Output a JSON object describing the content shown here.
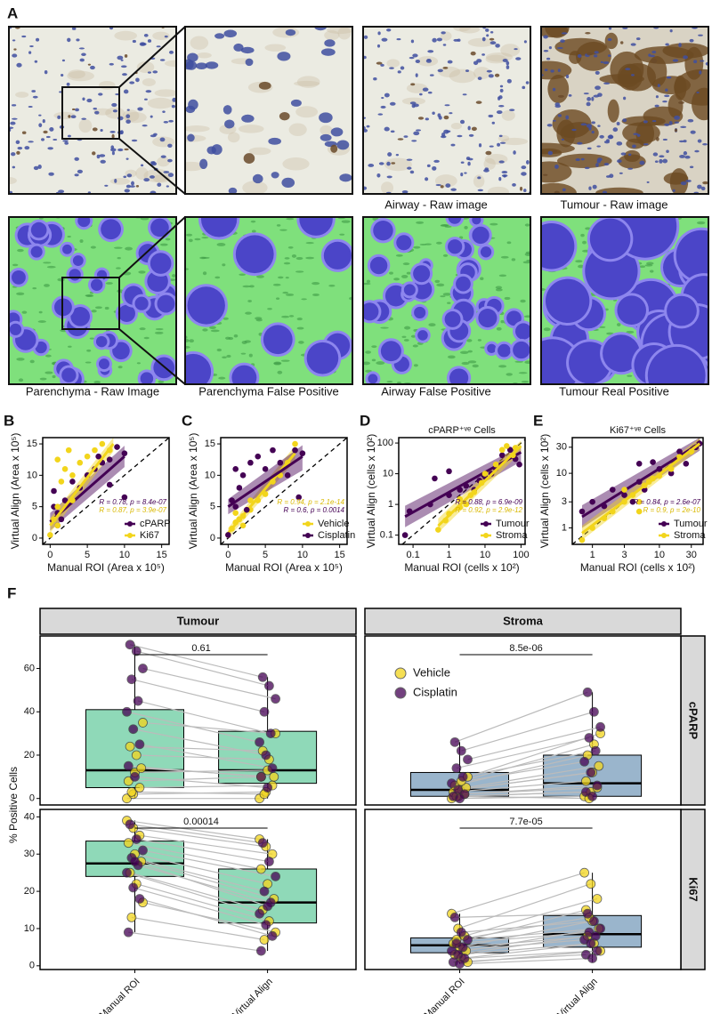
{
  "figure": {
    "panel_label": "A",
    "captions": [
      "Airway - Raw image",
      "Tumour - Raw image",
      "Parenchyma - Raw Image",
      "Parenchyma False Positive",
      "Airway False Positive",
      "Tumour Real Positive"
    ]
  },
  "chart_data": [
    {
      "type": "scatter",
      "panel_label": "B",
      "xlabel": "Manual ROI (Area x 10⁵)",
      "ylabel": "Virtual Align (Area x 10⁵)",
      "log": false,
      "identity_line": true,
      "legend": "bottom right",
      "xlim": [
        -1,
        16
      ],
      "ylim": [
        -1,
        16
      ],
      "xticks": [
        0,
        5,
        10,
        15
      ],
      "yticks": [
        0,
        5,
        10,
        15
      ],
      "series": [
        {
          "name": "cPARP",
          "color": "#440154",
          "x": [
            0.5,
            0.5,
            1,
            1.5,
            2,
            3,
            4,
            5,
            6,
            7,
            8,
            9,
            10,
            8,
            10,
            6.5,
            1
          ],
          "y": [
            7.5,
            5,
            2,
            3,
            6,
            9,
            8,
            10,
            11,
            12,
            12.5,
            14.5,
            13.5,
            8.5,
            6.5,
            13,
            4
          ],
          "fit_x": [
            0,
            10
          ],
          "fit_y": [
            2.6,
            13
          ],
          "band_low": [
            1.2,
            11.3
          ],
          "band_high": [
            4,
            14.7
          ],
          "stat_label": "R = 0.78, p = 8.4e-07"
        },
        {
          "name": "Ki67",
          "color": "#f2d51c",
          "x": [
            0,
            0.5,
            1,
            1.5,
            2,
            2.5,
            3,
            4,
            5,
            6,
            7,
            8,
            3,
            1,
            1
          ],
          "y": [
            0.5,
            3,
            5,
            9,
            11,
            14,
            10,
            12,
            13,
            14,
            15,
            14,
            6,
            2,
            12.5
          ],
          "fit_x": [
            0,
            8.5
          ],
          "fit_y": [
            2,
            15
          ],
          "band_low": [
            0.8,
            13.8
          ],
          "band_high": [
            3.2,
            16
          ],
          "stat_label": "R = 0.87, p = 3.9e-07"
        }
      ]
    },
    {
      "type": "scatter",
      "panel_label": "C",
      "xlabel": "Manual ROI (Area x 10⁵)",
      "ylabel": "Virtual Align (Area x 10⁵)",
      "log": false,
      "identity_line": true,
      "legend": "bottom right",
      "xlim": [
        -1,
        16
      ],
      "ylim": [
        -1,
        16
      ],
      "xticks": [
        0,
        5,
        10,
        15
      ],
      "yticks": [
        0,
        5,
        10,
        15
      ],
      "series": [
        {
          "name": "Vehicle",
          "color": "#f2d51c",
          "x": [
            0,
            0.5,
            1,
            1.5,
            2,
            3,
            4,
            5,
            6,
            7,
            8,
            9,
            2,
            3,
            1
          ],
          "y": [
            0.5,
            1.5,
            2.5,
            3,
            3.5,
            4.5,
            6,
            7,
            9,
            10,
            12,
            15,
            2,
            6,
            4
          ],
          "fit_x": [
            0,
            9
          ],
          "fit_y": [
            0.8,
            13.5
          ],
          "band_low": [
            0,
            12.3
          ],
          "band_high": [
            1.6,
            14.7
          ],
          "stat_label": "R = 0.94, p = 2.1e-14"
        },
        {
          "name": "Cisplatin",
          "color": "#440154",
          "x": [
            0,
            0.5,
            1,
            1.5,
            2,
            3,
            4,
            5,
            6,
            7,
            8,
            9,
            10,
            1,
            9.5,
            2.5
          ],
          "y": [
            0.5,
            6,
            5,
            8,
            10,
            12,
            13,
            11,
            14,
            12,
            10,
            14,
            13.5,
            11,
            6.5,
            4.5
          ],
          "fit_x": [
            0,
            10
          ],
          "fit_y": [
            5,
            13
          ],
          "band_low": [
            3.8,
            10.8
          ],
          "band_high": [
            6.2,
            14.8
          ],
          "stat_label": "R = 0.6, p = 0.0014"
        }
      ]
    },
    {
      "type": "scatter",
      "panel_label": "D",
      "title": "cPARP⁺ᵛᵉ Cells",
      "xlabel": "Manual ROI (cells x 10²)",
      "ylabel": "Virtual Align (cells x 10²)",
      "log": true,
      "identity_line": true,
      "legend": "bottom right",
      "xlim": [
        0.04,
        130
      ],
      "ylim": [
        0.05,
        150
      ],
      "xticks": [
        0.1,
        1,
        10,
        100
      ],
      "yticks": [
        0.1,
        1,
        10,
        100
      ],
      "series": [
        {
          "name": "Tumour",
          "color": "#440154",
          "x": [
            0.06,
            0.08,
            0.3,
            0.4,
            1,
            2,
            3,
            5,
            7,
            10,
            15,
            20,
            30,
            50,
            70,
            90,
            1
          ],
          "y": [
            0.1,
            0.6,
            1,
            7,
            2,
            3,
            4,
            3,
            6,
            8,
            10,
            15,
            40,
            60,
            30,
            20,
            12
          ],
          "fit_x": [
            0.06,
            100
          ],
          "fit_y": [
            0.4,
            50
          ],
          "band_low": [
            0.18,
            25
          ],
          "band_high": [
            0.9,
            80
          ],
          "stat_label": "R = 0.88, p = 6.9e-09"
        },
        {
          "name": "Stroma",
          "color": "#f2d51c",
          "x": [
            0.5,
            0.8,
            1,
            2,
            3,
            4,
            5,
            8,
            10,
            20,
            30,
            40,
            60,
            70,
            2
          ],
          "y": [
            0.15,
            0.3,
            0.5,
            0.8,
            1,
            2,
            2.5,
            5,
            10,
            20,
            60,
            80,
            40,
            70,
            1.5
          ],
          "fit_x": [
            0.5,
            100
          ],
          "fit_y": [
            0.2,
            80
          ],
          "band_low": [
            0.12,
            50
          ],
          "band_high": [
            0.35,
            120
          ],
          "stat_label": "R = 0.92, p = 2.9e-12"
        }
      ]
    },
    {
      "type": "scatter",
      "panel_label": "E",
      "title": "Ki67⁺ᵛᵉ Cells",
      "xlabel": "Manual ROI (cells x 10²)",
      "ylabel": "Virtual Align (cells x 10²)",
      "log": true,
      "identity_line": true,
      "legend": "bottom right",
      "xlim": [
        0.5,
        45
      ],
      "ylim": [
        0.5,
        45
      ],
      "xticks": [
        1,
        3,
        10,
        30
      ],
      "yticks": [
        1,
        3,
        10,
        30
      ],
      "series": [
        {
          "name": "Tumour",
          "color": "#440154",
          "x": [
            0.7,
            1,
            1.5,
            2,
            3,
            4,
            5,
            6,
            8,
            10,
            15,
            20,
            25,
            35,
            40,
            5
          ],
          "y": [
            2,
            3,
            2.5,
            5,
            4,
            3,
            7,
            5,
            16,
            12,
            10,
            25,
            15,
            30,
            35,
            15
          ],
          "fit_x": [
            0.7,
            40
          ],
          "fit_y": [
            1.6,
            35
          ],
          "band_low": [
            1,
            26
          ],
          "band_high": [
            2.6,
            45
          ],
          "stat_label": "R = 0.84, p = 2.6e-07"
        },
        {
          "name": "Stroma",
          "color": "#f2d51c",
          "x": [
            0.7,
            1,
            1.5,
            2,
            3,
            4,
            5,
            6,
            7,
            8,
            10,
            15,
            20,
            30,
            3,
            5
          ],
          "y": [
            0.6,
            1,
            1.5,
            2,
            3,
            4,
            3,
            6,
            7,
            8,
            9,
            12,
            20,
            25,
            5,
            2
          ],
          "fit_x": [
            0.7,
            40
          ],
          "fit_y": [
            0.8,
            35
          ],
          "band_low": [
            0.6,
            28
          ],
          "band_high": [
            1.1,
            44
          ],
          "stat_label": "R = 0.9, p = 2e-10"
        }
      ]
    },
    {
      "type": "box",
      "panel_label": "F",
      "ylabel": "% Positive Cells",
      "columns": [
        "Tumour",
        "Stroma"
      ],
      "rows": [
        "cPARP",
        "Ki67"
      ],
      "categories": [
        "Manual ROI",
        "Virtual Align"
      ],
      "box_colors": [
        "#8fd9b8",
        "#9ab5cc"
      ],
      "ylims": [
        [
          -3,
          75
        ],
        [
          -1,
          42
        ]
      ],
      "yticks": [
        [
          0,
          20,
          40,
          60
        ],
        [
          0,
          10,
          20,
          30,
          40
        ]
      ],
      "legend_facet": 1,
      "series": [
        {
          "name": "Vehicle",
          "color": "#f2d51c"
        },
        {
          "name": "Cisplatin",
          "color": "#440154"
        }
      ],
      "facets": [
        {
          "column": 0,
          "row": 0,
          "p_label": "0.61",
          "boxes": [
            {
              "low": 0,
              "q1": 5,
              "median": 13,
              "q3": 41,
              "high": 71
            },
            {
              "low": 0,
              "q1": 7,
              "median": 13,
              "q3": 31,
              "high": 56
            }
          ],
          "groups": [
            {
              "manual": [
                0,
                2,
                5,
                8,
                12,
                14,
                24,
                20,
                35,
                3
              ],
              "virtual": [
                0,
                3,
                6,
                10,
                13,
                10,
                22,
                18,
                30,
                2
              ]
            },
            {
              "manual": [
                71,
                68,
                60,
                55,
                45,
                40,
                32,
                25,
                15,
                10
              ],
              "virtual": [
                56,
                52,
                46,
                40,
                30,
                26,
                20,
                14,
                10,
                5
              ]
            }
          ]
        },
        {
          "column": 1,
          "row": 0,
          "p_label": "8.5e-06",
          "boxes": [
            {
              "low": 0,
              "q1": 1,
              "median": 4,
              "q3": 12,
              "high": 26
            },
            {
              "low": 0,
              "q1": 1,
              "median": 7,
              "q3": 20,
              "high": 49
            }
          ],
          "groups": [
            {
              "manual": [
                0,
                1,
                2,
                3,
                4,
                5,
                6,
                8,
                10,
                1
              ],
              "virtual": [
                1,
                3,
                5,
                8,
                12,
                15,
                20,
                25,
                30,
                0
              ]
            },
            {
              "manual": [
                26,
                22,
                18,
                14,
                10,
                7,
                4,
                2,
                1,
                0
              ],
              "virtual": [
                49,
                40,
                33,
                28,
                22,
                17,
                12,
                6,
                3,
                1
              ]
            }
          ]
        },
        {
          "column": 0,
          "row": 1,
          "p_label": "0.00014",
          "boxes": [
            {
              "low": 9,
              "q1": 24,
              "median": 27.5,
              "q3": 33.5,
              "high": 39
            },
            {
              "low": 4,
              "q1": 11.5,
              "median": 17,
              "q3": 26,
              "high": 34
            }
          ],
          "groups": [
            {
              "manual": [
                39,
                37,
                35,
                33,
                30,
                28,
                25,
                22,
                17,
                13
              ],
              "virtual": [
                34,
                32,
                30,
                26,
                22,
                18,
                15,
                12,
                9,
                7
              ]
            },
            {
              "manual": [
                38,
                34,
                31,
                29,
                27,
                25,
                21,
                18,
                9,
                28
              ],
              "virtual": [
                33,
                28,
                24,
                20,
                17,
                14,
                11,
                8,
                4,
                16
              ]
            }
          ]
        },
        {
          "column": 1,
          "row": 1,
          "p_label": "7.7e-05",
          "boxes": [
            {
              "low": 0.5,
              "q1": 3.5,
              "median": 5.5,
              "q3": 7.5,
              "high": 14
            },
            {
              "low": 1,
              "q1": 5,
              "median": 8.5,
              "q3": 13.5,
              "high": 25
            }
          ],
          "groups": [
            {
              "manual": [
                14,
                10,
                8,
                6,
                5,
                4,
                3,
                2,
                1,
                7
              ],
              "virtual": [
                25,
                22,
                18,
                15,
                12,
                10,
                8,
                6,
                4,
                13
              ]
            },
            {
              "manual": [
                13,
                9,
                7,
                6,
                5,
                4,
                3,
                2,
                1,
                0.5
              ],
              "virtual": [
                14,
                12,
                10,
                9,
                8,
                7,
                6,
                4,
                3,
                2
              ]
            }
          ]
        }
      ]
    }
  ]
}
